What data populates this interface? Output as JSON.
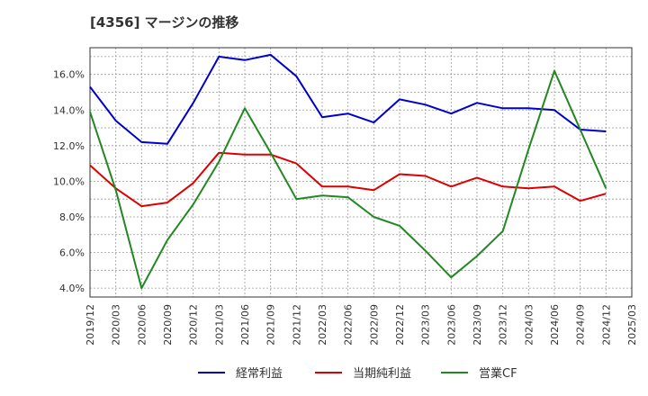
{
  "chart_data": {
    "type": "line",
    "title": "[4356]  マージンの推移",
    "x": [
      "2019/12",
      "2020/03",
      "2020/06",
      "2020/09",
      "2020/12",
      "2021/03",
      "2021/06",
      "2021/09",
      "2021/12",
      "2022/03",
      "2022/06",
      "2022/09",
      "2022/12",
      "2023/03",
      "2023/06",
      "2023/09",
      "2023/12",
      "2024/03",
      "2024/06",
      "2024/09",
      "2024/12",
      "2025/03"
    ],
    "ylim": [
      3.5,
      17.5
    ],
    "yticks": [
      4.0,
      6.0,
      8.0,
      10.0,
      12.0,
      14.0,
      16.0
    ],
    "ytick_labels": [
      "4.0%",
      "6.0%",
      "8.0%",
      "10.0%",
      "12.0%",
      "14.0%",
      "16.0%"
    ],
    "grid": true,
    "legend_position": "bottom",
    "series": [
      {
        "name": "経常利益",
        "color": "#0000cc",
        "values": [
          15.3,
          13.4,
          12.2,
          12.1,
          14.4,
          17.0,
          16.8,
          17.1,
          15.9,
          13.6,
          13.8,
          13.3,
          14.6,
          14.3,
          13.8,
          14.4,
          14.1,
          14.1,
          14.0,
          12.9,
          12.8,
          null
        ]
      },
      {
        "name": "当期純利益",
        "color": "#dd0000",
        "values": [
          10.9,
          9.6,
          8.6,
          8.8,
          9.9,
          11.6,
          11.5,
          11.5,
          11.0,
          9.7,
          9.7,
          9.5,
          10.4,
          10.3,
          9.7,
          10.2,
          9.7,
          9.6,
          9.7,
          8.9,
          9.3,
          null
        ]
      },
      {
        "name": "営業CF",
        "color": "#228822",
        "values": [
          13.9,
          9.5,
          4.0,
          6.7,
          8.7,
          11.1,
          14.1,
          11.6,
          9.0,
          9.2,
          9.1,
          8.0,
          7.5,
          6.1,
          4.6,
          5.8,
          7.2,
          11.8,
          16.2,
          12.9,
          9.6,
          null
        ]
      }
    ]
  }
}
